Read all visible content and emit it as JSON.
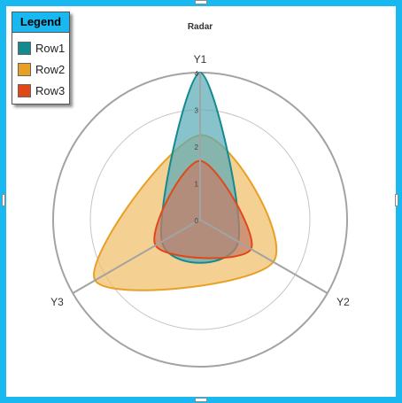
{
  "chart_data": {
    "type": "radar",
    "title": "Radar",
    "axes": [
      "Y1",
      "Y2",
      "Y3"
    ],
    "rlim": [
      0,
      4
    ],
    "tick_labels": [
      "0",
      "1",
      "2",
      "3",
      "4"
    ],
    "series": [
      {
        "name": "Row1",
        "values": [
          4,
          1.2,
          1.2
        ],
        "color": "#138a90",
        "fill": "#5aabb7"
      },
      {
        "name": "Row2",
        "values": [
          2.3,
          2.3,
          3.3
        ],
        "color": "#e8a024",
        "fill": "#f0be6a"
      },
      {
        "name": "Row3",
        "values": [
          1.6,
          1.6,
          1.4
        ],
        "color": "#e04818",
        "fill": "#c47e6a"
      }
    ]
  },
  "legend": {
    "title": "Legend"
  },
  "colors": {
    "frame": "#1ab8f0",
    "grid": "#aaaaaa",
    "legend_header": "#1ab8f0"
  }
}
